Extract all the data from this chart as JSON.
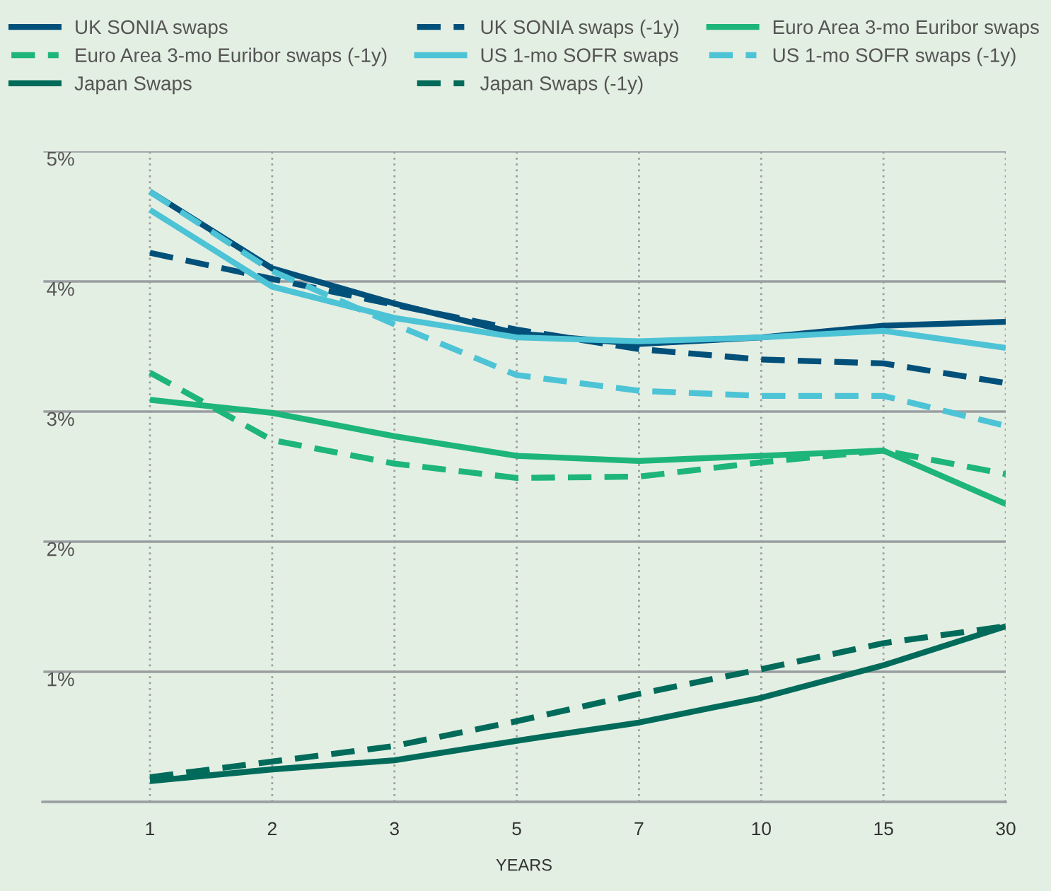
{
  "chart_data": {
    "type": "line",
    "xlabel": "YEARS",
    "categories": [
      "1",
      "2",
      "3",
      "5",
      "7",
      "10",
      "15",
      "30"
    ],
    "series": [
      {
        "name": "UK SONIA swaps",
        "color": "#00507a",
        "line_style": "solid",
        "values": [
          4.69,
          4.1,
          3.83,
          3.6,
          3.52,
          3.57,
          3.66,
          3.69
        ]
      },
      {
        "name": "UK SONIA swaps (-1y)",
        "color": "#00507a",
        "line_style": "dashed",
        "values": [
          4.22,
          4.02,
          3.82,
          3.63,
          3.48,
          3.4,
          3.37,
          3.22
        ]
      },
      {
        "name": "Euro Area 3-mo Euribor swaps",
        "color": "#1db57a",
        "line_style": "solid",
        "values": [
          3.09,
          2.99,
          2.81,
          2.66,
          2.62,
          2.66,
          2.7,
          2.29
        ]
      },
      {
        "name": "Euro Area 3-mo Euribor swaps (-1y)",
        "color": "#1db57a",
        "line_style": "dashed",
        "values": [
          3.3,
          2.78,
          2.6,
          2.49,
          2.5,
          2.61,
          2.7,
          2.52
        ]
      },
      {
        "name": "US 1-mo SOFR swaps",
        "color": "#4dc3d6",
        "line_style": "solid",
        "values": [
          4.55,
          3.96,
          3.72,
          3.57,
          3.54,
          3.57,
          3.62,
          3.49
        ]
      },
      {
        "name": "US 1-mo SOFR swaps (-1y)",
        "color": "#4dc3d6",
        "line_style": "dashed",
        "values": [
          4.69,
          4.08,
          3.67,
          3.28,
          3.16,
          3.12,
          3.12,
          2.89
        ]
      },
      {
        "name": "Japan Swaps",
        "color": "#006b5a",
        "line_style": "solid",
        "values": [
          0.16,
          0.25,
          0.32,
          0.47,
          0.61,
          0.8,
          1.05,
          1.35
        ]
      },
      {
        "name": "Japan Swaps (-1y)",
        "color": "#006b5a",
        "line_style": "dashed",
        "values": [
          0.19,
          0.31,
          0.43,
          0.62,
          0.83,
          1.02,
          1.22,
          1.35
        ]
      }
    ],
    "ylim": [
      0,
      5
    ],
    "yticks": [
      {
        "value": 0,
        "label": null
      },
      {
        "value": 1,
        "label": "1%"
      },
      {
        "value": 2,
        "label": "2%"
      },
      {
        "value": 3,
        "label": "3%"
      },
      {
        "value": 4,
        "label": "4%"
      },
      {
        "value": 5,
        "label": "5%"
      }
    ],
    "grid": true,
    "legend": "top",
    "marker": "none"
  }
}
